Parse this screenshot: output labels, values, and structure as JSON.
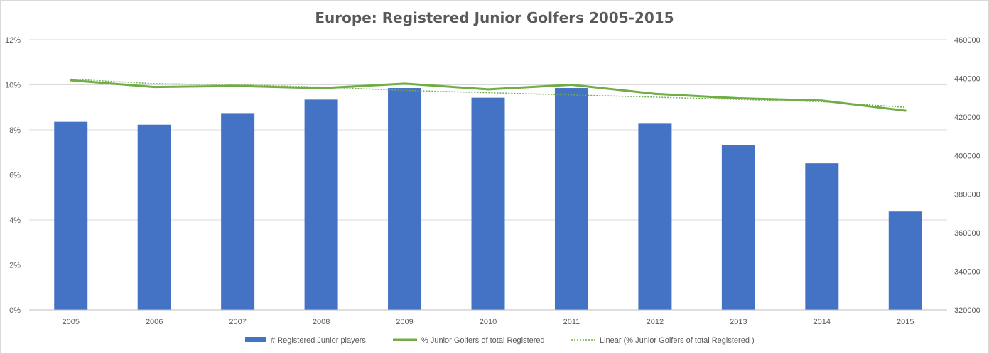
{
  "chart_data": {
    "type": "bar",
    "title": "Europe: Registered Junior Golfers 2005-2015",
    "categories": [
      "2005",
      "2006",
      "2007",
      "2008",
      "2009",
      "2010",
      "2011",
      "2012",
      "2013",
      "2014",
      "2015"
    ],
    "y_left": {
      "ticks": [
        "0%",
        "2%",
        "4%",
        "6%",
        "8%",
        "10%",
        "12%"
      ],
      "range": [
        0,
        12
      ],
      "unit": "%"
    },
    "y_right": {
      "ticks": [
        "320000",
        "340000",
        "360000",
        "380000",
        "400000",
        "420000",
        "440000",
        "460000"
      ],
      "range": [
        320000,
        460000
      ]
    },
    "grid": true,
    "legend_position": "bottom",
    "series": [
      {
        "name": "# Registered Junior players",
        "type": "bar",
        "axis": "right",
        "color": "#4472c4",
        "values": [
          417500,
          416000,
          422000,
          429000,
          435000,
          430000,
          435000,
          416500,
          405500,
          396000,
          371000
        ]
      },
      {
        "name": "% Junior Golfers of total Registered",
        "type": "line",
        "axis": "left",
        "color": "#70ad47",
        "values": [
          10.2,
          9.9,
          9.95,
          9.85,
          10.05,
          9.8,
          10.0,
          9.6,
          9.4,
          9.3,
          8.85
        ]
      },
      {
        "name": "Linear (% Junior Golfers of total Registered )",
        "type": "trendline",
        "axis": "left",
        "color": "#70ad47",
        "values": [
          10.25,
          10.05,
          10.0,
          9.9,
          9.75,
          9.65,
          9.55,
          9.45,
          9.35,
          9.25,
          9.0
        ]
      }
    ]
  }
}
